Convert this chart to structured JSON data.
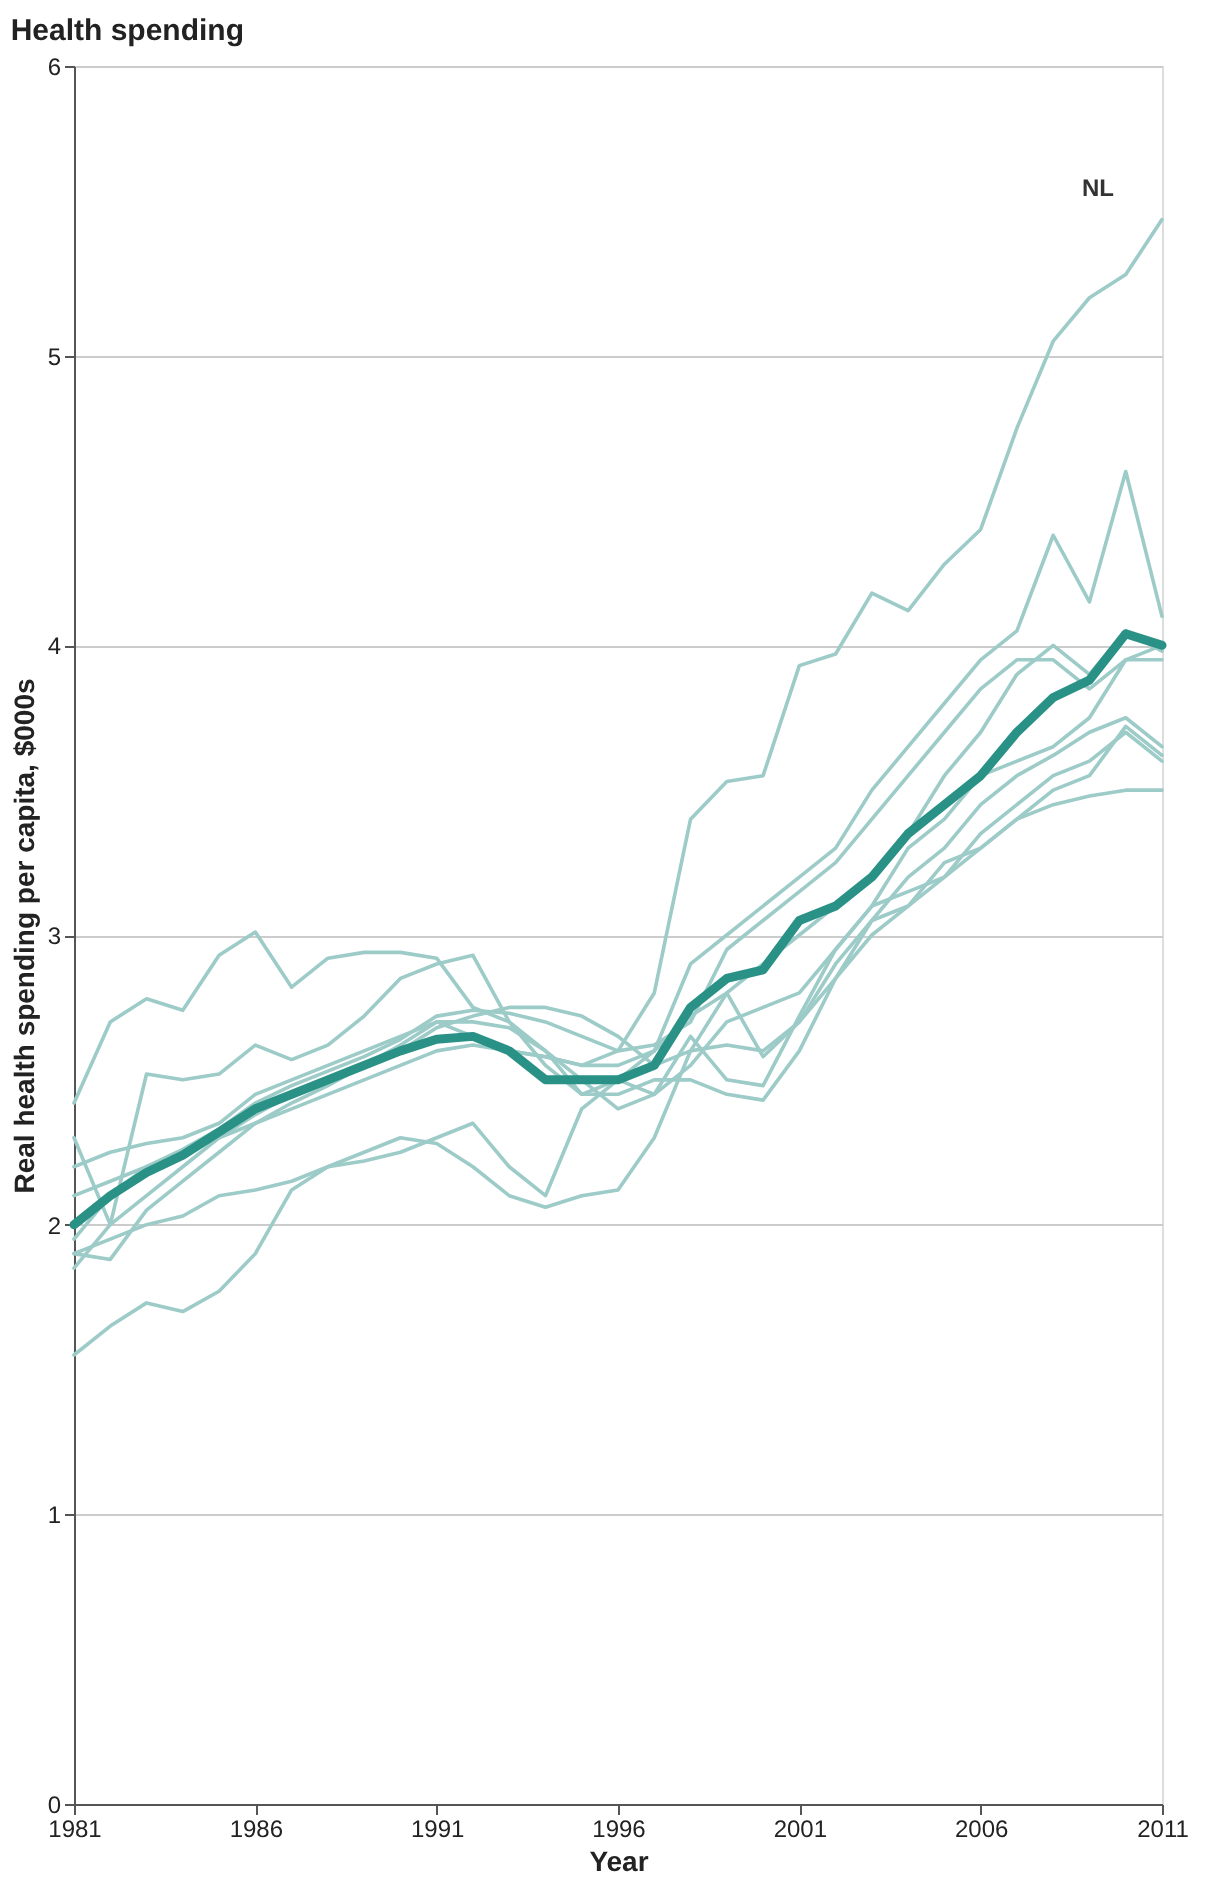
{
  "chart_data": {
    "type": "line",
    "title": "Health spending",
    "xlabel": "Year",
    "ylabel": "Real health spending per capita, $000s",
    "x": [
      1981,
      1982,
      1983,
      1984,
      1985,
      1986,
      1987,
      1988,
      1989,
      1990,
      1991,
      1992,
      1993,
      1994,
      1995,
      1996,
      1997,
      1998,
      1999,
      2000,
      2001,
      2002,
      2003,
      2004,
      2005,
      2006,
      2007,
      2008,
      2009,
      2010,
      2011
    ],
    "series": [
      {
        "name": "NL",
        "color": "#9ccbc8",
        "values": [
          2.1,
          2.15,
          2.2,
          2.25,
          2.3,
          2.35,
          2.4,
          2.45,
          2.5,
          2.55,
          2.6,
          2.62,
          2.6,
          2.58,
          2.55,
          2.6,
          2.8,
          3.4,
          3.53,
          3.55,
          3.93,
          3.97,
          4.18,
          4.12,
          4.28,
          4.4,
          4.75,
          5.05,
          5.2,
          5.28,
          5.47
        ]
      },
      {
        "color": "#9ccbc8",
        "values": [
          2.42,
          2.7,
          2.78,
          2.74,
          2.93,
          3.01,
          2.82,
          2.92,
          2.94,
          2.94,
          2.92,
          2.75,
          2.7,
          2.6,
          2.45,
          2.5,
          2.6,
          2.9,
          3.0,
          3.1,
          3.2,
          3.3,
          3.5,
          3.65,
          3.8,
          3.95,
          4.05,
          4.38,
          4.15,
          4.6,
          4.1
        ]
      },
      {
        "color": "#9ccbc8",
        "values": [
          1.55,
          1.65,
          1.73,
          1.7,
          1.77,
          1.9,
          2.12,
          2.2,
          2.25,
          2.3,
          2.28,
          2.2,
          2.1,
          2.06,
          2.1,
          2.12,
          2.3,
          2.6,
          2.62,
          2.6,
          2.7,
          2.85,
          3.0,
          3.1,
          3.2,
          3.3,
          3.4,
          3.45,
          3.48,
          3.5,
          3.5
        ]
      },
      {
        "color": "#9ccbc8",
        "values": [
          1.9,
          1.95,
          2.0,
          2.03,
          2.1,
          2.12,
          2.15,
          2.2,
          2.22,
          2.25,
          2.3,
          2.35,
          2.2,
          2.1,
          2.4,
          2.5,
          2.45,
          2.55,
          2.7,
          2.75,
          2.8,
          2.95,
          3.1,
          3.15,
          3.2,
          3.35,
          3.45,
          3.55,
          3.6,
          3.7,
          3.6
        ]
      },
      {
        "color": "#9ccbc8",
        "values": [
          2.3,
          2.0,
          2.52,
          2.5,
          2.52,
          2.62,
          2.57,
          2.62,
          2.72,
          2.85,
          2.9,
          2.93,
          2.7,
          2.55,
          2.45,
          2.45,
          2.5,
          2.5,
          2.45,
          2.43,
          2.6,
          2.85,
          3.05,
          3.2,
          3.3,
          3.45,
          3.55,
          3.62,
          3.7,
          3.75,
          3.65
        ]
      },
      {
        "color": "#9ccbc8",
        "values": [
          1.95,
          2.1,
          2.2,
          2.26,
          2.33,
          2.42,
          2.48,
          2.53,
          2.58,
          2.64,
          2.72,
          2.74,
          2.73,
          2.7,
          2.65,
          2.6,
          2.62,
          2.7,
          2.95,
          3.05,
          3.15,
          3.25,
          3.4,
          3.55,
          3.7,
          3.85,
          3.95,
          3.95,
          3.85,
          3.95,
          4.0
        ]
      },
      {
        "color": "#9ccbc8",
        "values": [
          1.85,
          2.0,
          2.1,
          2.2,
          2.3,
          2.38,
          2.45,
          2.5,
          2.55,
          2.6,
          2.68,
          2.72,
          2.75,
          2.75,
          2.72,
          2.65,
          2.55,
          2.6,
          2.8,
          2.9,
          3.0,
          3.1,
          3.2,
          3.35,
          3.55,
          3.7,
          3.9,
          4.0,
          3.9,
          4.05,
          3.98
        ]
      },
      {
        "color": "#9ccbc8",
        "values": [
          2.2,
          2.25,
          2.28,
          2.3,
          2.35,
          2.45,
          2.5,
          2.55,
          2.6,
          2.65,
          2.7,
          2.65,
          2.6,
          2.58,
          2.55,
          2.55,
          2.6,
          2.72,
          2.8,
          2.58,
          2.7,
          2.9,
          3.05,
          3.1,
          3.25,
          3.3,
          3.4,
          3.5,
          3.55,
          3.72,
          3.62
        ]
      },
      {
        "color": "#9ccbc8",
        "values": [
          1.9,
          1.88,
          2.05,
          2.15,
          2.25,
          2.35,
          2.42,
          2.48,
          2.55,
          2.62,
          2.7,
          2.7,
          2.68,
          2.6,
          2.5,
          2.4,
          2.45,
          2.65,
          2.5,
          2.48,
          2.72,
          2.95,
          3.1,
          3.3,
          3.4,
          3.55,
          3.6,
          3.65,
          3.75,
          3.95,
          3.95
        ]
      },
      {
        "color": "#2a9187",
        "values": [
          2.0,
          2.1,
          2.18,
          2.24,
          2.32,
          2.4,
          2.45,
          2.5,
          2.55,
          2.6,
          2.64,
          2.65,
          2.6,
          2.5,
          2.5,
          2.5,
          2.55,
          2.75,
          2.85,
          2.88,
          3.05,
          3.1,
          3.2,
          3.35,
          3.45,
          3.55,
          3.7,
          3.82,
          3.88,
          4.04,
          4.0
        ]
      }
    ],
    "xlim": [
      1981,
      2011
    ],
    "xticks": [
      1981,
      1986,
      1991,
      1996,
      2001,
      2006,
      2011
    ],
    "ylim": [
      0,
      6
    ],
    "yticks": [
      0,
      1,
      2,
      3,
      4,
      5,
      6
    ],
    "grid": "y",
    "line_style": "solid"
  }
}
